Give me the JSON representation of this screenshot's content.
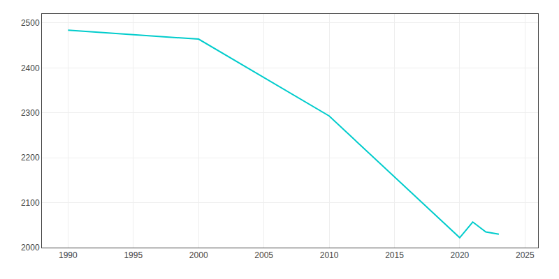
{
  "chart_data": {
    "type": "line",
    "x": [
      1990,
      2000,
      2010,
      2020,
      2021,
      2022,
      2023
    ],
    "values": [
      2484,
      2464,
      2293,
      2022,
      2057,
      2035,
      2030
    ],
    "color": "#00CCCC",
    "xlim": [
      1988,
      2026
    ],
    "ylim": [
      2000,
      2520
    ],
    "xticks": [
      1990,
      1995,
      2000,
      2005,
      2010,
      2015,
      2020,
      2025
    ],
    "yticks": [
      2000,
      2100,
      2200,
      2300,
      2400,
      2500
    ],
    "grid": true
  }
}
